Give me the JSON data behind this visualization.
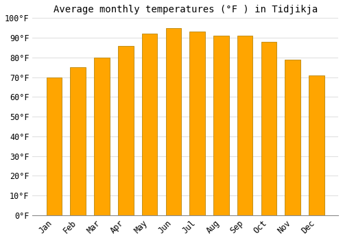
{
  "title": "Average monthly temperatures (°F ) in Tidjikja",
  "months": [
    "Jan",
    "Feb",
    "Mar",
    "Apr",
    "May",
    "Jun",
    "Jul",
    "Aug",
    "Sep",
    "Oct",
    "Nov",
    "Dec"
  ],
  "values": [
    70,
    75,
    80,
    86,
    92,
    95,
    93,
    91,
    91,
    88,
    79,
    71
  ],
  "bar_color": "#FFA500",
  "bar_edge_color": "#B8860B",
  "background_color": "#FFFFFF",
  "grid_color": "#DDDDDD",
  "ylim": [
    0,
    100
  ],
  "yticks": [
    0,
    10,
    20,
    30,
    40,
    50,
    60,
    70,
    80,
    90,
    100
  ],
  "ylabel_suffix": "°F",
  "title_fontsize": 10,
  "tick_fontsize": 8.5
}
